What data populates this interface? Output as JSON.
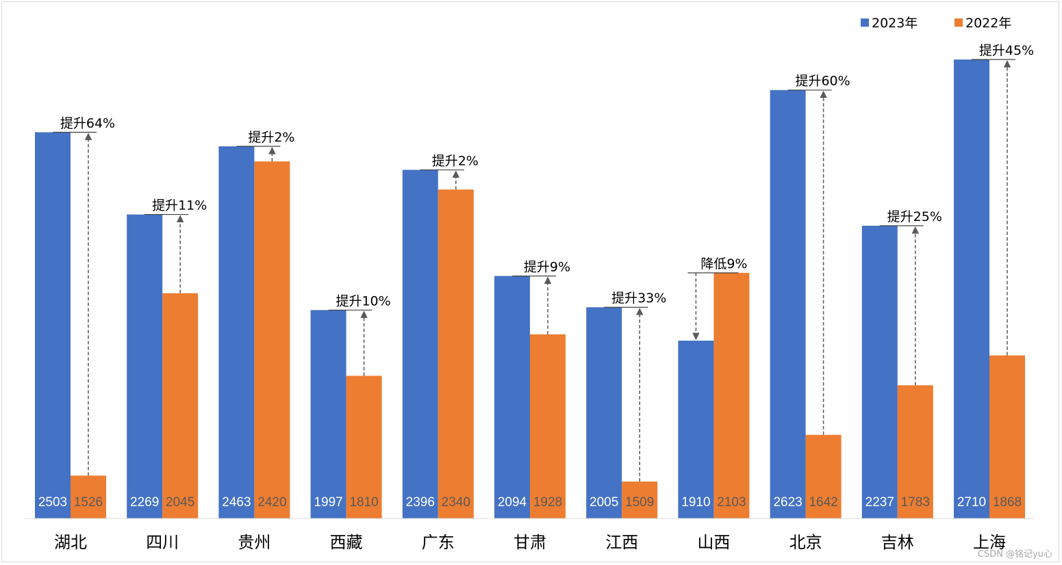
{
  "chart_data": {
    "type": "bar",
    "title": "",
    "xlabel": "",
    "ylabel": "",
    "ylim": [
      1400,
      2800
    ],
    "grid": false,
    "legend_position": "top-right",
    "categories": [
      "湖北",
      "四川",
      "贵州",
      "西藏",
      "广东",
      "甘肃",
      "江西",
      "山西",
      "北京",
      "吉林",
      "上海"
    ],
    "series": [
      {
        "name": "2023年",
        "color": "#4472C4",
        "values": [
          2503,
          2269,
          2463,
          1997,
          2396,
          2094,
          2005,
          1910,
          2623,
          2237,
          2710
        ]
      },
      {
        "name": "2022年",
        "color": "#ED7D31",
        "values": [
          1526,
          2045,
          2420,
          1810,
          2340,
          1928,
          1509,
          2103,
          1642,
          1783,
          1868
        ]
      }
    ],
    "change_labels": [
      "提升64%",
      "提升11%",
      "提升2%",
      "提升10%",
      "提升2%",
      "提升9%",
      "提升33%",
      "降低9%",
      "提升60%",
      "提升25%",
      "提升45%"
    ]
  },
  "watermark": "CSDN @铭记yu心"
}
